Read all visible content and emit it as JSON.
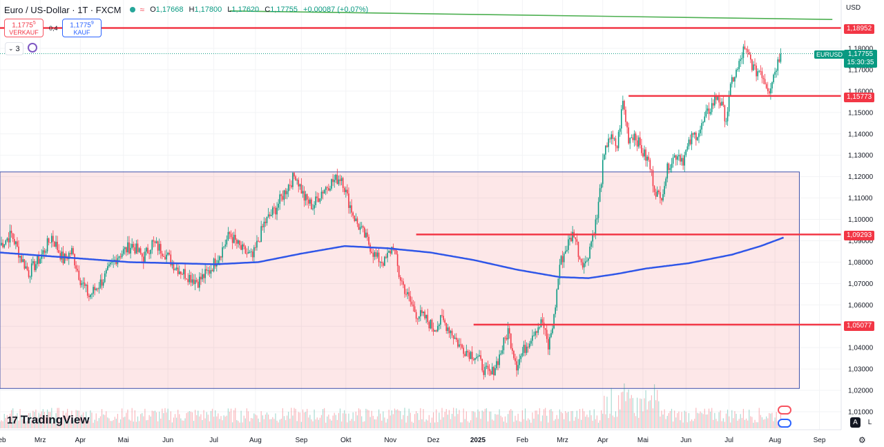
{
  "header": {
    "symbol_title": "Euro / US-Dollar · 1T · FXCM",
    "approx_icon": "≈",
    "ohlc": {
      "o_label": "O",
      "o": "1,17668",
      "h_label": "H",
      "h": "1,17800",
      "l_label": "L",
      "l": "1,17620",
      "c_label": "C",
      "c": "1,17755",
      "change": "+0,00087 (+0,07%)"
    }
  },
  "trade": {
    "sell_price": "1,1775",
    "sell_price_sup": "5",
    "sell_label": "VERKAUF",
    "spread": "0,4",
    "buy_price": "1,1775",
    "buy_price_sup": "9",
    "buy_label": "KAUF"
  },
  "indicators": {
    "count": "3"
  },
  "currency": "USD",
  "logo": {
    "mark": "17",
    "name": "TradingView"
  },
  "price_tags": {
    "symbol": "EURUSD",
    "current": "1,17755",
    "countdown": "15:30:35",
    "levels": [
      "1,18952",
      "1,15773",
      "1,09293",
      "1,05077"
    ]
  },
  "axis_buttons": {
    "auto": "A",
    "log": "L"
  },
  "colors": {
    "up": "#089981",
    "down": "#f23645",
    "level": "#f23645",
    "ma": "#2f56e8",
    "trend": "#4caf50",
    "zone": "rgba(242,54,69,0.12)",
    "zone_border": "#3b4fa8"
  },
  "chart_data": {
    "type": "candlestick",
    "title": "Euro / US-Dollar · 1T · FXCM",
    "ylim": [
      1.005,
      1.195
    ],
    "y_ticks": [
      "1,18000",
      "1,17000",
      "1,16000",
      "1,15000",
      "1,14000",
      "1,13000",
      "1,12000",
      "1,11000",
      "1,10000",
      "1,09000",
      "1,08000",
      "1,07000",
      "1,06000",
      "1,05000",
      "1,04000",
      "1,03000",
      "1,02000",
      "1,01000"
    ],
    "y_tick_values": [
      1.18,
      1.17,
      1.16,
      1.15,
      1.14,
      1.13,
      1.12,
      1.11,
      1.1,
      1.09,
      1.08,
      1.07,
      1.06,
      1.05,
      1.04,
      1.03,
      1.02,
      1.01
    ],
    "x_ticks": [
      "Feb",
      "Mrz",
      "Apr",
      "Mai",
      "Jun",
      "Jul",
      "Aug",
      "Sep",
      "Okt",
      "Nov",
      "Dez",
      "2025",
      "Feb",
      "Mrz",
      "Apr",
      "Mai",
      "Jun",
      "Jul",
      "Aug",
      "Sep"
    ],
    "x_tick_index": [
      0,
      28,
      56,
      86,
      117,
      149,
      178,
      210,
      241,
      272,
      302,
      333,
      364,
      392,
      420,
      448,
      478,
      508,
      540,
      571
    ],
    "close_anchors": [
      [
        0,
        1.088
      ],
      [
        8,
        1.093
      ],
      [
        14,
        1.083
      ],
      [
        20,
        1.075
      ],
      [
        28,
        1.082
      ],
      [
        36,
        1.092
      ],
      [
        44,
        1.081
      ],
      [
        50,
        1.085
      ],
      [
        56,
        1.072
      ],
      [
        62,
        1.064
      ],
      [
        72,
        1.072
      ],
      [
        82,
        1.083
      ],
      [
        92,
        1.088
      ],
      [
        100,
        1.082
      ],
      [
        106,
        1.089
      ],
      [
        114,
        1.085
      ],
      [
        122,
        1.078
      ],
      [
        130,
        1.074
      ],
      [
        138,
        1.071
      ],
      [
        146,
        1.076
      ],
      [
        154,
        1.085
      ],
      [
        160,
        1.093
      ],
      [
        168,
        1.086
      ],
      [
        176,
        1.082
      ],
      [
        184,
        1.098
      ],
      [
        192,
        1.105
      ],
      [
        200,
        1.115
      ],
      [
        206,
        1.121
      ],
      [
        212,
        1.11
      ],
      [
        218,
        1.106
      ],
      [
        224,
        1.113
      ],
      [
        230,
        1.117
      ],
      [
        238,
        1.12
      ],
      [
        242,
        1.11
      ],
      [
        248,
        1.099
      ],
      [
        256,
        1.09
      ],
      [
        262,
        1.082
      ],
      [
        268,
        1.08
      ],
      [
        274,
        1.088
      ],
      [
        278,
        1.074
      ],
      [
        284,
        1.064
      ],
      [
        290,
        1.056
      ],
      [
        296,
        1.054
      ],
      [
        302,
        1.049
      ],
      [
        308,
        1.053
      ],
      [
        314,
        1.048
      ],
      [
        320,
        1.041
      ],
      [
        326,
        1.038
      ],
      [
        332,
        1.036
      ],
      [
        338,
        1.029
      ],
      [
        342,
        1.027
      ],
      [
        348,
        1.036
      ],
      [
        354,
        1.048
      ],
      [
        360,
        1.032
      ],
      [
        366,
        1.04
      ],
      [
        372,
        1.048
      ],
      [
        378,
        1.052
      ],
      [
        382,
        1.04
      ],
      [
        386,
        1.054
      ],
      [
        390,
        1.079
      ],
      [
        396,
        1.089
      ],
      [
        400,
        1.094
      ],
      [
        404,
        1.082
      ],
      [
        408,
        1.079
      ],
      [
        412,
        1.09
      ],
      [
        416,
        1.101
      ],
      [
        420,
        1.125
      ],
      [
        424,
        1.139
      ],
      [
        430,
        1.134
      ],
      [
        434,
        1.155
      ],
      [
        438,
        1.138
      ],
      [
        442,
        1.14
      ],
      [
        448,
        1.131
      ],
      [
        452,
        1.127
      ],
      [
        456,
        1.115
      ],
      [
        460,
        1.109
      ],
      [
        466,
        1.126
      ],
      [
        472,
        1.131
      ],
      [
        476,
        1.128
      ],
      [
        482,
        1.138
      ],
      [
        488,
        1.142
      ],
      [
        494,
        1.151
      ],
      [
        500,
        1.158
      ],
      [
        506,
        1.147
      ],
      [
        510,
        1.165
      ],
      [
        514,
        1.17
      ],
      [
        518,
        1.179
      ],
      [
        522,
        1.176
      ],
      [
        526,
        1.169
      ],
      [
        530,
        1.17
      ],
      [
        534,
        1.163
      ],
      [
        536,
        1.161
      ],
      [
        540,
        1.17
      ],
      [
        544,
        1.1775
      ]
    ],
    "ma_anchors": [
      [
        0,
        1.0845
      ],
      [
        30,
        1.083
      ],
      [
        60,
        1.0815
      ],
      [
        90,
        1.08
      ],
      [
        120,
        1.0795
      ],
      [
        150,
        1.079
      ],
      [
        180,
        1.08
      ],
      [
        210,
        1.084
      ],
      [
        240,
        1.0875
      ],
      [
        270,
        1.0865
      ],
      [
        300,
        1.0845
      ],
      [
        330,
        1.081
      ],
      [
        360,
        1.0765
      ],
      [
        390,
        1.073
      ],
      [
        410,
        1.0725
      ],
      [
        430,
        1.0745
      ],
      [
        450,
        1.077
      ],
      [
        480,
        1.0795
      ],
      [
        510,
        1.0835
      ],
      [
        530,
        1.0875
      ],
      [
        546,
        1.0915
      ]
    ],
    "levels": [
      {
        "value": 1.18952,
        "label": "1,18952",
        "x_start_index": 0
      },
      {
        "value": 1.15773,
        "label": "1,15773",
        "x_start_index": 438
      },
      {
        "value": 1.09293,
        "label": "1,09293",
        "x_start_index": 290
      },
      {
        "value": 1.05077,
        "label": "1,05077",
        "x_start_index": 330
      }
    ],
    "zone": {
      "top": 1.1222,
      "bottom": 1.0209,
      "x_end_index": 557
    },
    "trendline": {
      "start": [
        160,
        1.1975
      ],
      "end": [
        580,
        1.1935
      ]
    },
    "last_price": 1.17755,
    "last_index": 544
  }
}
